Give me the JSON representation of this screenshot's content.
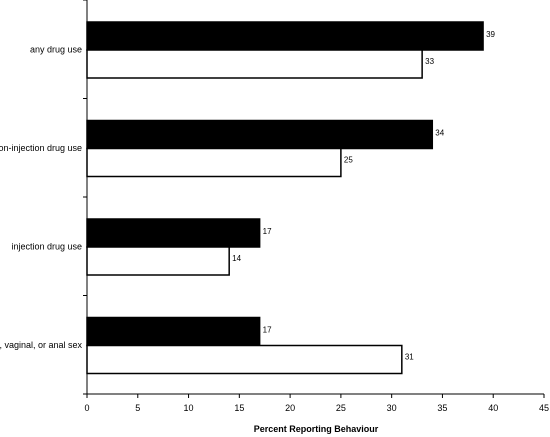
{
  "chart_data": {
    "type": "bar",
    "orientation": "horizontal",
    "categories": [
      "any drug use",
      "non-injection drug use",
      "injection drug use",
      "oral, vaginal, or anal sex"
    ],
    "series": [
      {
        "values": [
          39,
          34,
          17,
          17
        ],
        "color": "#000000"
      },
      {
        "values": [
          33,
          25,
          14,
          31
        ],
        "color": "#ffffff"
      }
    ],
    "xlabel": "Percent Reporting Behaviour",
    "ylabel": "",
    "xlim": [
      0,
      45
    ],
    "xticks": [
      "0",
      "5",
      "10",
      "15",
      "20",
      "25",
      "30",
      "35",
      "40",
      "45"
    ],
    "grid": false,
    "legend": "none"
  }
}
